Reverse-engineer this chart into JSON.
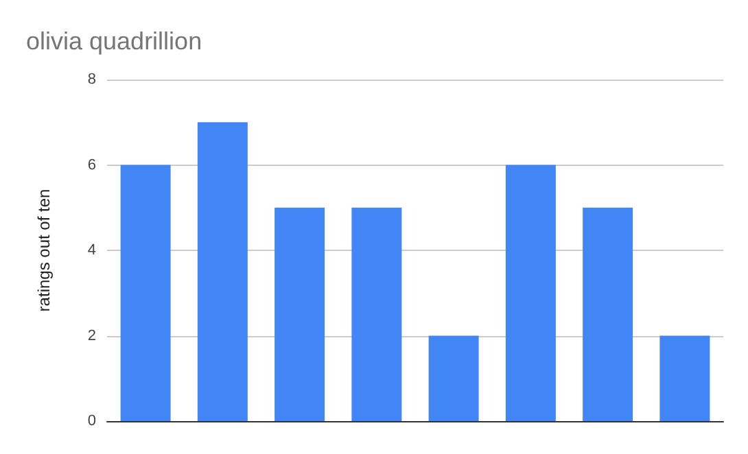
{
  "chart_data": {
    "type": "bar",
    "title": "olivia quadrillion",
    "ylabel": "ratings out of ten",
    "categories": [
      null,
      null,
      null,
      null,
      null,
      null,
      null,
      null
    ],
    "values": [
      6,
      7,
      5,
      5,
      2,
      6,
      5,
      2
    ],
    "color": "#4285f4",
    "ylim": [
      0,
      8
    ],
    "yticks": [
      0,
      2,
      4,
      6,
      8
    ],
    "grid": "y"
  }
}
